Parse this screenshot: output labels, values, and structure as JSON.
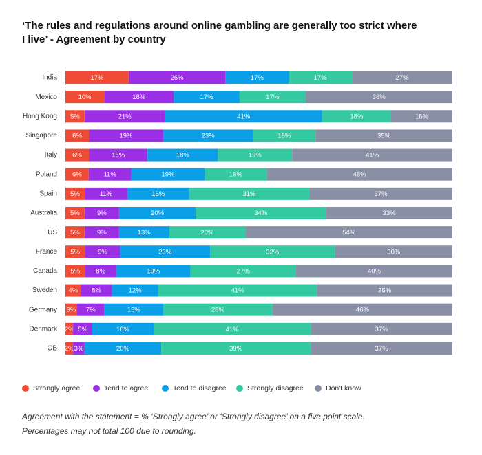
{
  "chart_data": {
    "type": "bar",
    "orientation": "horizontal",
    "stacked": "percent",
    "title": [
      "‘The rules and regulations around online gambling are generally too strict where",
      "I live’ - Agreement by country"
    ],
    "categories": [
      "India",
      "Mexico",
      "Hong Kong",
      "Singapore",
      "Italy",
      "Poland",
      "Spain",
      "Australia",
      "US",
      "France",
      "Canada",
      "Sweden",
      "Germany",
      "Denmark",
      "GB"
    ],
    "series": [
      {
        "name": "Strongly agree",
        "color": "#f04b35",
        "values": [
          17,
          10,
          5,
          6,
          6,
          6,
          5,
          5,
          5,
          5,
          5,
          4,
          3,
          2,
          2
        ],
        "value_labels": [
          "17%",
          "10%",
          "5%",
          "6%",
          "6%",
          "6%",
          "5%",
          "5%",
          "5%",
          "5%",
          "5%",
          "4%",
          "3%",
          "2%",
          "2%"
        ]
      },
      {
        "name": "Tend to agree",
        "color": "#9a2fe6",
        "values": [
          26,
          18,
          21,
          19,
          15,
          11,
          11,
          9,
          9,
          9,
          8,
          8,
          7,
          5,
          3
        ],
        "value_labels": [
          "26%",
          "18%",
          "21%",
          "19%",
          "15%",
          "11%",
          "11%",
          "9%",
          "9%",
          "9%",
          "8%",
          "8%",
          "7%",
          "5%",
          "3%"
        ]
      },
      {
        "name": "Tend to disagree",
        "color": "#0a9fe6",
        "values": [
          17,
          17,
          41,
          23,
          18,
          19,
          16,
          20,
          13,
          23,
          19,
          12,
          15,
          16,
          20
        ],
        "value_labels": [
          "17%",
          "17%",
          "41%",
          "23%",
          "18%",
          "19%",
          "16%",
          "20%",
          "13%",
          "23%",
          "19%",
          "12%",
          "15%",
          "16%",
          "20%"
        ]
      },
      {
        "name": "Strongly disagree",
        "color": "#35c9a1",
        "values": [
          17,
          17,
          18,
          16,
          19,
          16,
          31,
          34,
          20,
          32,
          27,
          41,
          28,
          41,
          39
        ],
        "value_labels": [
          "17%",
          "17%",
          "18%",
          "16%",
          "19%",
          "16%",
          "31%",
          "34%",
          "20%",
          "32%",
          "27%",
          "41%",
          "28%",
          "41%",
          "39%"
        ]
      },
      {
        "name": "Don't know",
        "color": "#8990a6",
        "values": [
          27,
          38,
          16,
          35,
          41,
          48,
          37,
          33,
          54,
          30,
          40,
          35,
          46,
          37,
          37
        ],
        "value_labels": [
          "27%",
          "38%",
          "16%",
          "35%",
          "41%",
          "48%",
          "37%",
          "33%",
          "54%",
          "30%",
          "40%",
          "35%",
          "46%",
          "37%",
          "37%"
        ]
      }
    ],
    "notes": [
      "Agreement with the statement = % ‘Strongly agree’ or ‘Strongly disagree’ on a five point scale.",
      "Percentages may not total 100 due to rounding."
    ]
  }
}
